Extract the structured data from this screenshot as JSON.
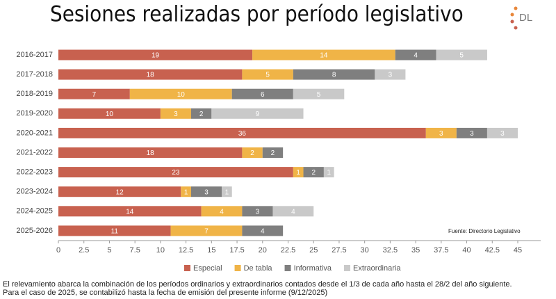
{
  "logo": {
    "text": "DL"
  },
  "notes": [
    "El relevamiento abarca la combinación de los períodos ordinarios y extraordinarios contados desde el 1/3 de cada año hasta el 28/2 del año siguiente.",
    "Para el caso de 2025, se contabilizó hasta la fecha de emisión del presente informe (9/12/2025)"
  ],
  "chart_data": {
    "type": "stacked-bar-horizontal",
    "title": "Sesiones realizadas por período legislativo",
    "source": "Fuente: Directorio Legislativo",
    "categories": [
      "2016-2017",
      "2017-2018",
      "2018-2019",
      "2019-2020",
      "2020-2021",
      "2021-2022",
      "2022-2023",
      "2023-2024",
      "2024-2025",
      "2025-2026"
    ],
    "series": [
      {
        "name": "Especial",
        "color": "#c8614f",
        "values": [
          19,
          18,
          7,
          10,
          36,
          18,
          23,
          12,
          14,
          11
        ]
      },
      {
        "name": "De tabla",
        "color": "#f0b447",
        "values": [
          14,
          5,
          10,
          3,
          3,
          2,
          1,
          1,
          4,
          7
        ]
      },
      {
        "name": "Informativa",
        "color": "#7f7f7f",
        "values": [
          4,
          8,
          6,
          2,
          3,
          2,
          2,
          3,
          3,
          4
        ]
      },
      {
        "name": "Extraordinaria",
        "color": "#c9c9c9",
        "values": [
          5,
          3,
          5,
          9,
          3,
          null,
          1,
          1,
          4,
          null
        ]
      }
    ],
    "xlim": [
      0,
      45
    ],
    "xticks": [
      0,
      2.5,
      5,
      7.5,
      10,
      12.5,
      15,
      17.5,
      20,
      22.5,
      25,
      27.5,
      30,
      32.5,
      35,
      37.5,
      40,
      42.5,
      45
    ],
    "legend": "bottom"
  }
}
